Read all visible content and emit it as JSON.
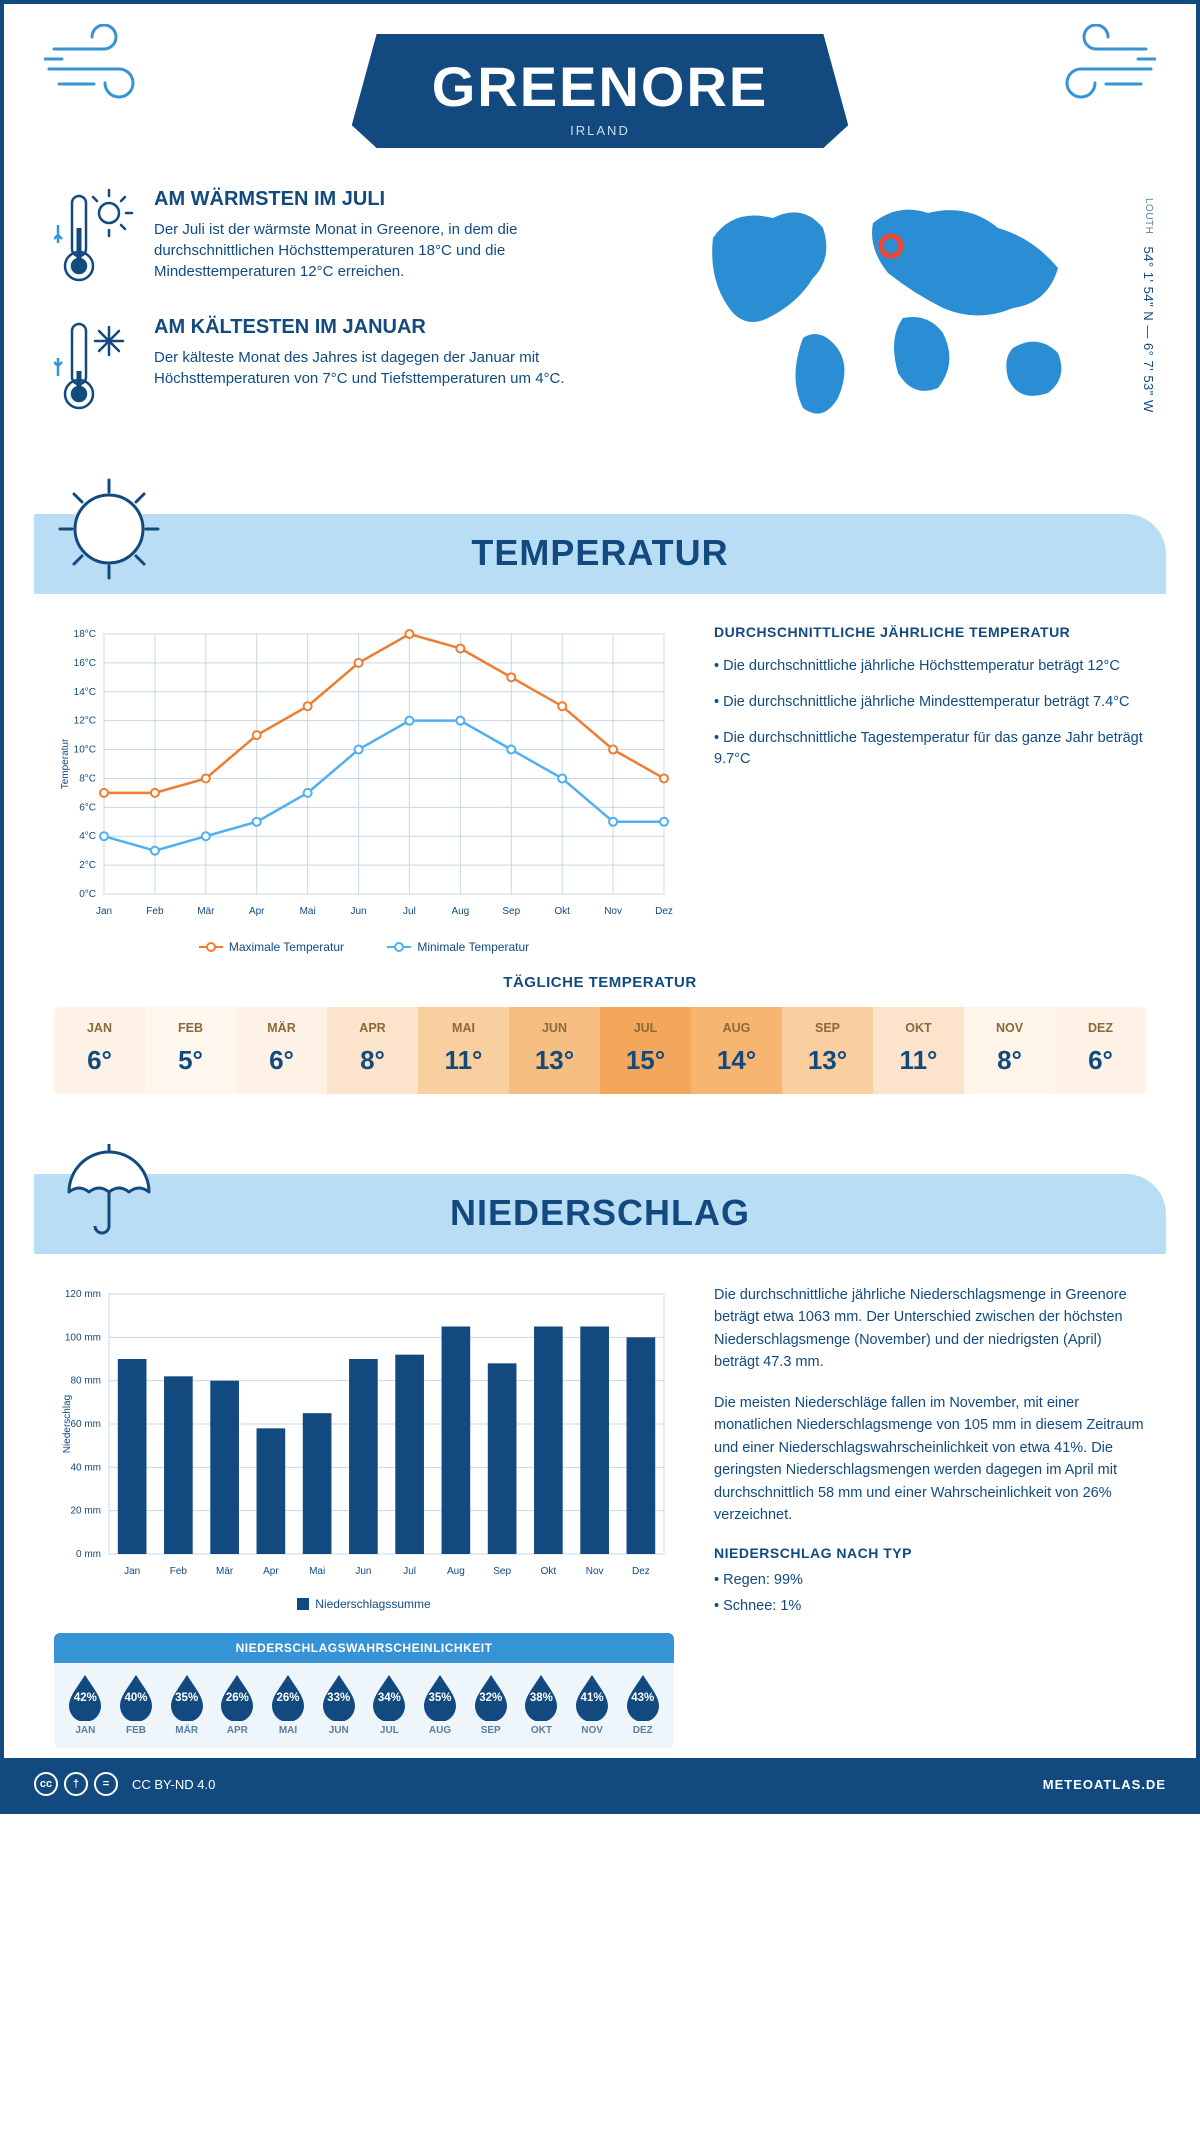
{
  "colors": {
    "primary": "#124a7f",
    "accent": "#3693d6",
    "band": "#b9ddf5",
    "orange": "#ed7d31",
    "blue_line": "#4eb0f0",
    "grid": "#c8d8e8",
    "panel_bg": "#eef6fc"
  },
  "header": {
    "title": "GREENORE",
    "country": "IRLAND"
  },
  "coords": {
    "region": "LOUTH",
    "lat": "54° 1' 54\" N",
    "lon": "6° 7' 53\" W"
  },
  "intro": {
    "warm": {
      "title": "AM WÄRMSTEN IM JULI",
      "body": "Der Juli ist der wärmste Monat in Greenore, in dem die durchschnittlichen Höchsttemperaturen 18°C und die Mindesttemperaturen 12°C erreichen."
    },
    "cold": {
      "title": "AM KÄLTESTEN IM JANUAR",
      "body": "Der kälteste Monat des Jahres ist dagegen der Januar mit Höchsttemperaturen von 7°C und Tiefsttemperaturen um 4°C."
    }
  },
  "sections": {
    "temperature": "TEMPERATUR",
    "precip": "NIEDERSCHLAG"
  },
  "months": [
    "Jan",
    "Feb",
    "Mär",
    "Apr",
    "Mai",
    "Jun",
    "Jul",
    "Aug",
    "Sep",
    "Okt",
    "Nov",
    "Dez"
  ],
  "months_uc": [
    "JAN",
    "FEB",
    "MÄR",
    "APR",
    "MAI",
    "JUN",
    "JUL",
    "AUG",
    "SEP",
    "OKT",
    "NOV",
    "DEZ"
  ],
  "temperature_chart": {
    "type": "line",
    "ylabel": "Temperatur",
    "ylim": [
      0,
      18
    ],
    "ytick_step": 2,
    "x_categories": [
      "Jan",
      "Feb",
      "Mär",
      "Apr",
      "Mai",
      "Jun",
      "Jul",
      "Aug",
      "Sep",
      "Okt",
      "Nov",
      "Dez"
    ],
    "series": [
      {
        "name": "Maximale Temperatur",
        "color": "#ed7d31",
        "marker": "circle",
        "values": [
          7,
          7,
          8,
          11,
          13,
          16,
          18,
          17,
          15,
          13,
          10,
          8
        ]
      },
      {
        "name": "Minimale Temperatur",
        "color": "#4eb0f0",
        "marker": "circle",
        "values": [
          4,
          3,
          4,
          5,
          7,
          10,
          12,
          12,
          10,
          8,
          5,
          5
        ]
      }
    ],
    "legend": {
      "max": "Maximale Temperatur",
      "min": "Minimale Temperatur"
    },
    "grid_color": "#c8d8e8"
  },
  "temperature_text": {
    "heading": "DURCHSCHNITTLICHE JÄHRLICHE TEMPERATUR",
    "bullets": [
      "• Die durchschnittliche jährliche Höchsttemperatur beträgt 12°C",
      "• Die durchschnittliche jährliche Mindesttemperatur beträgt 7.4°C",
      "• Die durchschnittliche Tagestemperatur für das ganze Jahr beträgt 9.7°C"
    ]
  },
  "daily_temp": {
    "title": "TÄGLICHE TEMPERATUR",
    "values": [
      "6°",
      "5°",
      "6°",
      "8°",
      "11°",
      "13°",
      "15°",
      "14°",
      "13°",
      "11°",
      "8°",
      "6°"
    ],
    "cell_colors": [
      "#fdf2e5",
      "#fef7ee",
      "#fdf2e5",
      "#fce4cc",
      "#f9cfa0",
      "#f6be81",
      "#f4a75a",
      "#f6b571",
      "#f9cfa0",
      "#fce4cc",
      "#fef4e8",
      "#fdf2e5"
    ]
  },
  "precip_chart": {
    "type": "bar",
    "ylabel": "Niederschlag",
    "ylim": [
      0,
      120
    ],
    "ytick_step": 20,
    "y_unit": "mm",
    "x_categories": [
      "Jan",
      "Feb",
      "Mär",
      "Apr",
      "Mai",
      "Jun",
      "Jul",
      "Aug",
      "Sep",
      "Okt",
      "Nov",
      "Dez"
    ],
    "values": [
      90,
      82,
      80,
      58,
      65,
      90,
      92,
      105,
      88,
      105,
      105,
      100
    ],
    "bar_color": "#124a7f",
    "grid_color": "#c8d8e8",
    "legend": "Niederschlagssumme"
  },
  "precip_probability": {
    "title": "NIEDERSCHLAGSWAHRSCHEINLICHKEIT",
    "drop_color": "#124a7f",
    "values": [
      "42%",
      "40%",
      "35%",
      "26%",
      "26%",
      "33%",
      "34%",
      "35%",
      "32%",
      "38%",
      "41%",
      "43%"
    ]
  },
  "precip_text": {
    "para1": "Die durchschnittliche jährliche Niederschlagsmenge in Greenore beträgt etwa 1063 mm. Der Unterschied zwischen der höchsten Niederschlagsmenge (November) und der niedrigsten (April) beträgt 47.3 mm.",
    "para2": "Die meisten Niederschläge fallen im November, mit einer monatlichen Niederschlagsmenge von 105 mm in diesem Zeitraum und einer Niederschlagswahrscheinlichkeit von etwa 41%. Die geringsten Niederschlagsmengen werden dagegen im April mit durchschnittlich 58 mm und einer Wahrscheinlichkeit von 26% verzeichnet.",
    "type_heading": "NIEDERSCHLAG NACH TYP",
    "type_lines": [
      "• Regen: 99%",
      "• Schnee: 1%"
    ]
  },
  "footer": {
    "license": "CC BY-ND 4.0",
    "site": "METEOATLAS.DE"
  }
}
